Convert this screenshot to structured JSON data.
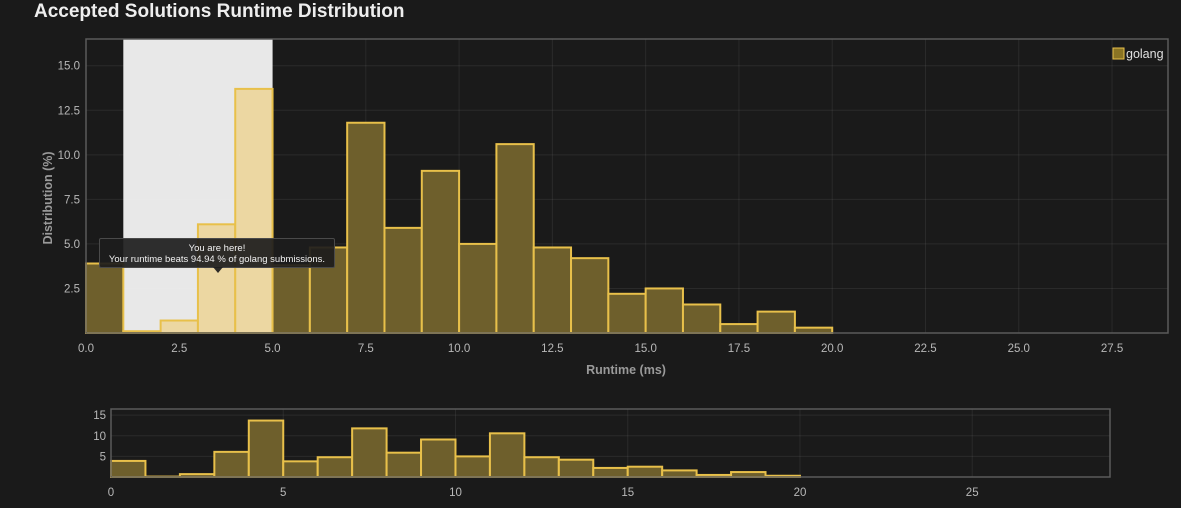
{
  "page": {
    "title": "Accepted Solutions Runtime Distribution"
  },
  "tooltip": {
    "line1": "You are here!",
    "line2": "Your runtime beats 94.94 % of golang submissions."
  },
  "chart_data": [
    {
      "id": "main",
      "type": "bar",
      "title": "",
      "xlabel": "Runtime (ms)",
      "ylabel": "Distribution (%)",
      "xlim": [
        0,
        29
      ],
      "ylim": [
        0,
        16.5
      ],
      "xticks": [
        0,
        2.5,
        5,
        7.5,
        10,
        12.5,
        15,
        17.5,
        20,
        22.5,
        25,
        27.5
      ],
      "xtick_labels": [
        "0.0",
        "2.5",
        "5.0",
        "7.5",
        "10.0",
        "12.5",
        "15.0",
        "17.5",
        "20.0",
        "22.5",
        "25.0",
        "27.5"
      ],
      "yticks": [
        2.5,
        5,
        7.5,
        10,
        12.5,
        15
      ],
      "ytick_labels": [
        "2.5",
        "5.0",
        "7.5",
        "10.0",
        "12.5",
        "15.0"
      ],
      "bin_width": 1,
      "series": [
        {
          "name": "golang",
          "x": [
            0,
            1,
            2,
            3,
            4,
            5,
            6,
            7,
            8,
            9,
            10,
            11,
            12,
            13,
            14,
            15,
            16,
            17,
            18,
            19
          ],
          "values": [
            3.9,
            0.1,
            0.7,
            6.1,
            13.7,
            3.8,
            4.8,
            11.8,
            5.9,
            9.1,
            5.0,
            10.6,
            4.8,
            4.2,
            2.2,
            2.5,
            1.6,
            0.5,
            1.2,
            0.3
          ]
        }
      ],
      "highlight_range": [
        1,
        5
      ],
      "legend": {
        "position": "top-right",
        "entries": [
          "golang"
        ]
      },
      "grid": true,
      "colors": {
        "bar_fill": "#6e5f2c",
        "bar_stroke": "#e8c04a",
        "highlight_bar_fill": "#ecd7a2",
        "highlight_band": "#e8e8e8",
        "legend_swatch": "#8a7424"
      }
    },
    {
      "id": "overview",
      "type": "bar",
      "title": "",
      "xlim": [
        0,
        29
      ],
      "ylim": [
        0,
        16.5
      ],
      "xticks": [
        0,
        5,
        10,
        15,
        20,
        25
      ],
      "xtick_labels": [
        "0",
        "5",
        "10",
        "15",
        "20",
        "25"
      ],
      "yticks": [
        5,
        10,
        15
      ],
      "ytick_labels": [
        "5",
        "10",
        "15"
      ],
      "bin_width": 1,
      "grid": true
    }
  ]
}
